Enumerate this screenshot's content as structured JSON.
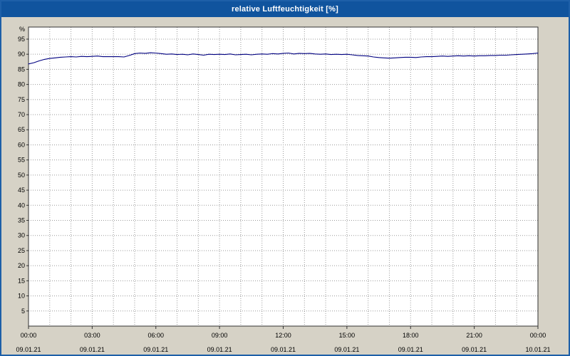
{
  "window": {
    "title": "relative Luftfeuchtigkeit [%]"
  },
  "colors": {
    "title_bar": "#10549e",
    "window_border": "#1d5fa8",
    "window_background": "#d6d2c6",
    "plot_background": "#ffffff",
    "grid": "#9a9a9a",
    "axis": "#333333",
    "line": "#000080"
  },
  "chart_data": {
    "type": "line",
    "title": "relative Luftfeuchtigkeit [%]",
    "xlabel": "",
    "ylabel": "%",
    "ylim": [
      0,
      99
    ],
    "grid": "dotted; vertical line every hour, horizontal line every 5 %",
    "legend_position": "none",
    "y_ticks": [
      5,
      10,
      15,
      20,
      25,
      30,
      35,
      40,
      45,
      50,
      55,
      60,
      65,
      70,
      75,
      80,
      85,
      90,
      95
    ],
    "x_ticks": [
      {
        "hour": 0,
        "time": "00:00",
        "date": "09.01.21"
      },
      {
        "hour": 3,
        "time": "03:00",
        "date": "09.01.21"
      },
      {
        "hour": 6,
        "time": "06:00",
        "date": "09.01.21"
      },
      {
        "hour": 9,
        "time": "09:00",
        "date": "09.01.21"
      },
      {
        "hour": 12,
        "time": "12:00",
        "date": "09.01.21"
      },
      {
        "hour": 15,
        "time": "15:00",
        "date": "09.01.21"
      },
      {
        "hour": 18,
        "time": "18:00",
        "date": "09.01.21"
      },
      {
        "hour": 21,
        "time": "21:00",
        "date": "09.01.21"
      },
      {
        "hour": 24,
        "time": "00:00",
        "date": "10.01.21"
      }
    ],
    "series": [
      {
        "name": "relative Luftfeuchtigkeit",
        "unit": "%",
        "color": "#000080",
        "x_hours": [
          0,
          0.25,
          0.5,
          0.75,
          1,
          1.25,
          1.5,
          1.75,
          2,
          2.25,
          2.5,
          2.75,
          3,
          3.25,
          3.5,
          3.75,
          4,
          4.25,
          4.5,
          4.75,
          5,
          5.25,
          5.5,
          5.75,
          6,
          6.25,
          6.5,
          6.75,
          7,
          7.25,
          7.5,
          7.75,
          8,
          8.25,
          8.5,
          8.75,
          9,
          9.25,
          9.5,
          9.75,
          10,
          10.25,
          10.5,
          10.75,
          11,
          11.25,
          11.5,
          11.75,
          12,
          12.25,
          12.5,
          12.75,
          13,
          13.25,
          13.5,
          13.75,
          14,
          14.25,
          14.5,
          14.75,
          15,
          15.25,
          15.5,
          15.75,
          16,
          16.25,
          16.5,
          16.75,
          17,
          17.25,
          17.5,
          17.75,
          18,
          18.25,
          18.5,
          18.75,
          19,
          19.25,
          19.5,
          19.75,
          20,
          20.25,
          20.5,
          20.75,
          21,
          21.25,
          21.5,
          21.75,
          22,
          22.25,
          22.5,
          22.75,
          23,
          23.25,
          23.5,
          23.75,
          24
        ],
        "values": [
          86.8,
          87.2,
          87.8,
          88.3,
          88.6,
          88.8,
          89.0,
          89.1,
          89.2,
          89.1,
          89.3,
          89.2,
          89.3,
          89.4,
          89.2,
          89.2,
          89.2,
          89.2,
          89.1,
          89.6,
          90.2,
          90.4,
          90.3,
          90.5,
          90.4,
          90.2,
          90.0,
          90.1,
          89.9,
          90.0,
          89.8,
          90.1,
          89.9,
          89.7,
          90.0,
          89.9,
          90.0,
          89.9,
          90.1,
          89.8,
          89.9,
          90.0,
          89.8,
          90.0,
          90.1,
          90.0,
          90.2,
          90.1,
          90.3,
          90.4,
          90.1,
          90.3,
          90.2,
          90.3,
          90.1,
          90.0,
          90.1,
          89.9,
          90.0,
          89.9,
          90.0,
          89.8,
          89.6,
          89.5,
          89.4,
          89.1,
          88.9,
          88.8,
          88.7,
          88.8,
          88.9,
          89.0,
          89.0,
          88.9,
          89.1,
          89.2,
          89.2,
          89.3,
          89.4,
          89.3,
          89.4,
          89.5,
          89.4,
          89.5,
          89.4,
          89.5,
          89.5,
          89.6,
          89.6,
          89.7,
          89.7,
          89.8,
          89.9,
          90.0,
          90.1,
          90.2,
          90.4
        ]
      }
    ]
  }
}
